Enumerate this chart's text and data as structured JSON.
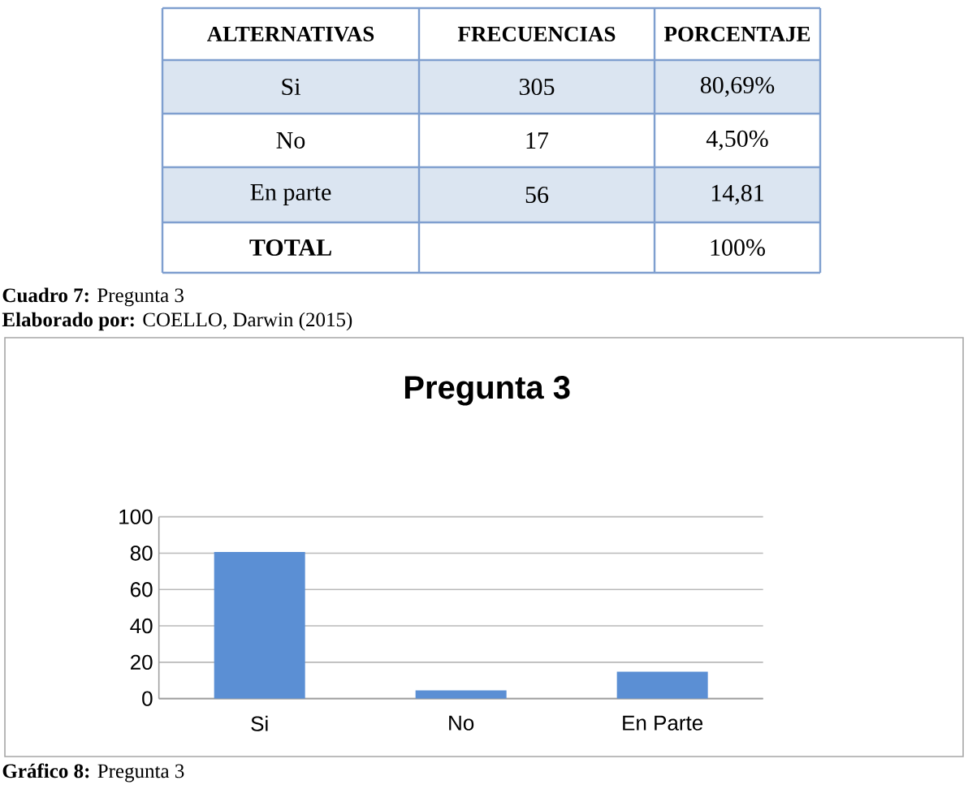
{
  "chart_data": [
    {
      "type": "other",
      "annotations": [
        "ALTERNATIVAS",
        "FRECUENCIAS",
        "PORCENTAJE",
        "Si",
        "305",
        "80,69%",
        "No",
        "17",
        "4,50%",
        "En parte",
        "56",
        "14,81",
        "TOTAL",
        "100%",
        "**Cuadro 7:** Pregunta 3",
        "**Elaborado por:** COELLO, Darwin (2015)"
      ]
    },
    {
      "type": "bar",
      "title": "Pregunta 3",
      "categories": [
        "Si",
        "No",
        "En Parte"
      ],
      "values": [
        80.69,
        4.5,
        14.81
      ],
      "color": "#5b8fd4",
      "ylim": [
        0,
        100
      ],
      "yticks": [
        0,
        20,
        40,
        60,
        80,
        100
      ],
      "grid": "y",
      "annotations": [
        "**Gráfico 8:** Pregunta 3"
      ]
    }
  ]
}
